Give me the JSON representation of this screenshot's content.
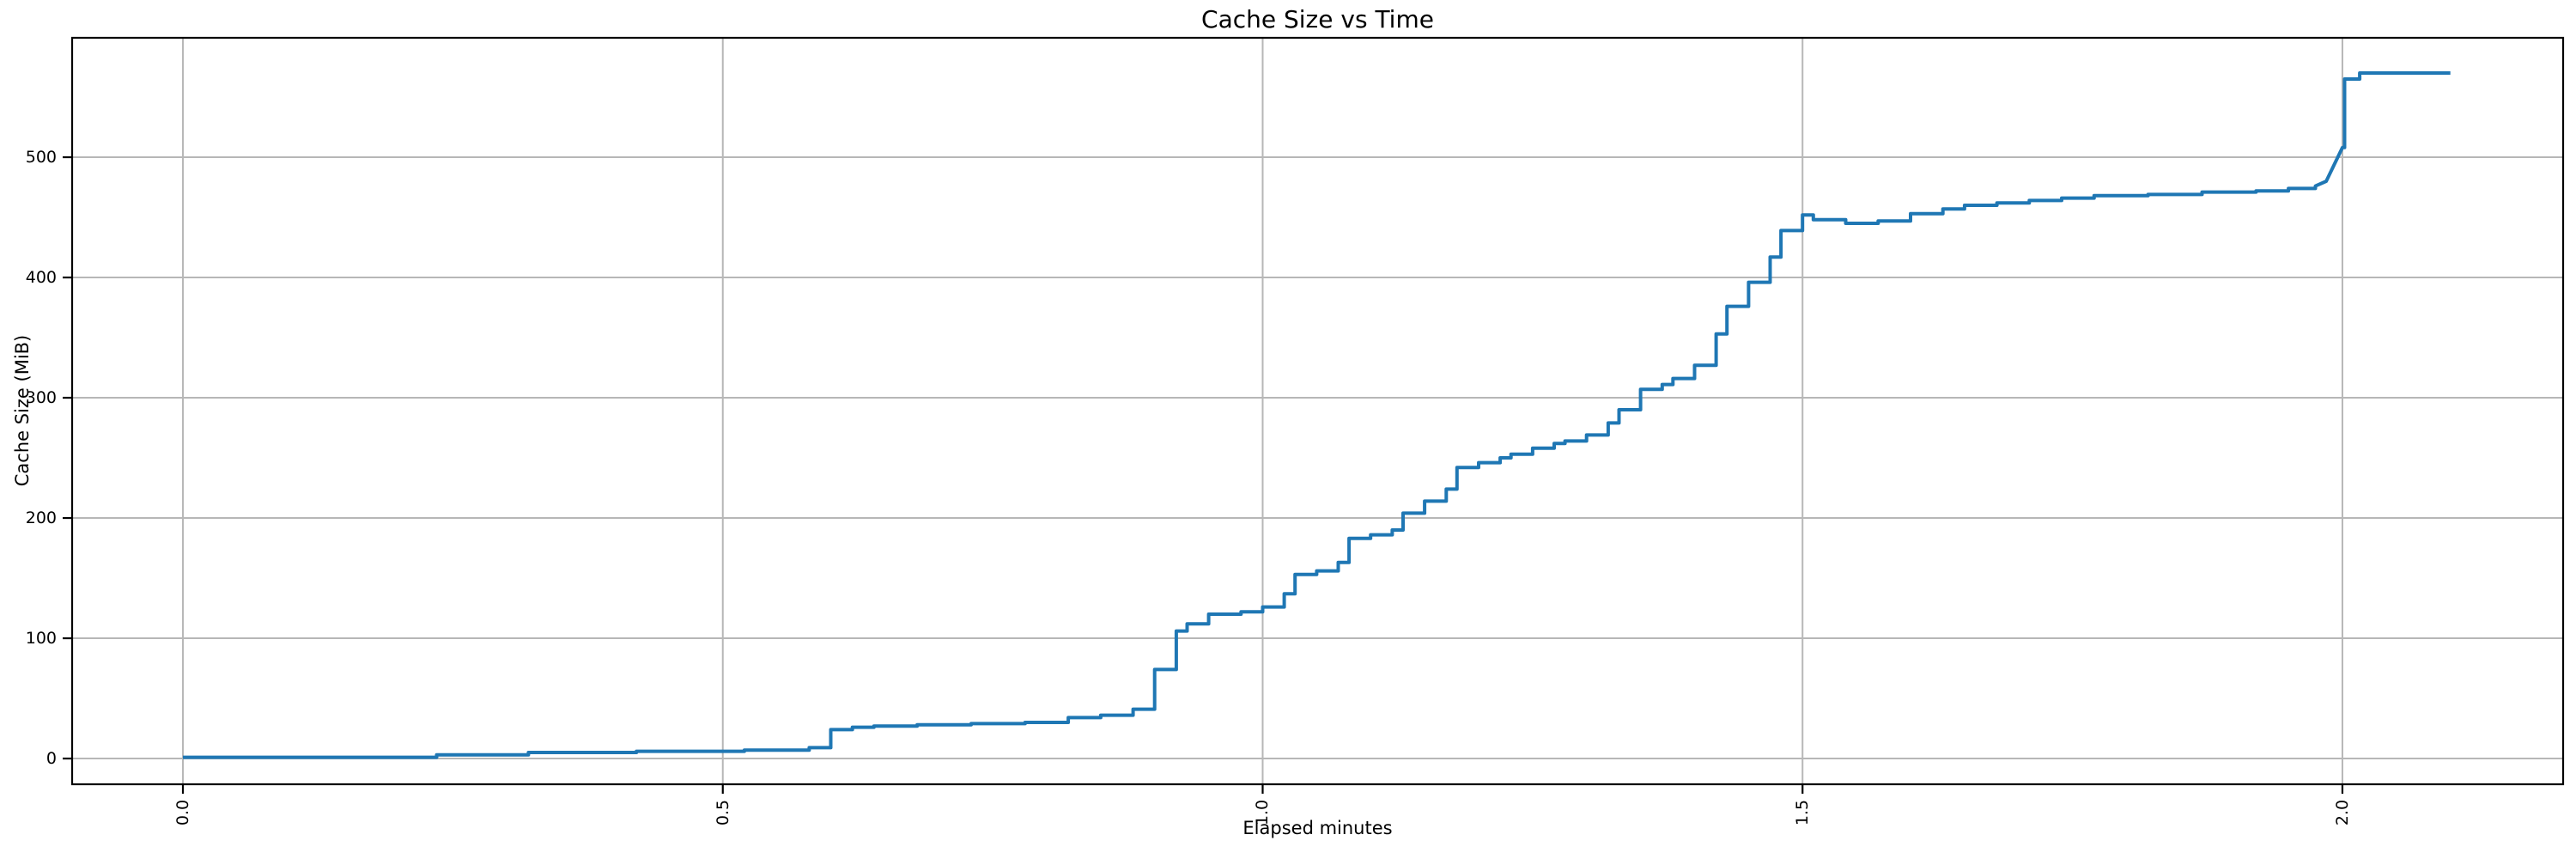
{
  "chart_data": {
    "type": "line",
    "title": "Cache Size vs Time",
    "xlabel": "Elapsed minutes",
    "ylabel": "Cache Size (MiB)",
    "x_ticks": [
      "0.0",
      "0.5",
      "1.0",
      "1.5",
      "2.0"
    ],
    "y_ticks": [
      "0",
      "100",
      "200",
      "300",
      "400",
      "500"
    ],
    "xlim": [
      -0.1026,
      2.2044
    ],
    "ylim": [
      -21.4,
      599.3
    ],
    "grid": true,
    "legend": false,
    "line_color": "#1f77b4",
    "grid_color": "#b7b7b7",
    "spine_color": "#000000",
    "interpolation": "step-post",
    "series": [
      {
        "name": "cache-size",
        "points": [
          [
            0.0,
            1
          ],
          [
            0.235,
            3
          ],
          [
            0.32,
            5
          ],
          [
            0.42,
            6
          ],
          [
            0.52,
            7
          ],
          [
            0.58,
            9
          ],
          [
            0.6,
            24
          ],
          [
            0.62,
            26
          ],
          [
            0.64,
            27
          ],
          [
            0.68,
            28
          ],
          [
            0.73,
            29
          ],
          [
            0.78,
            30
          ],
          [
            0.82,
            34
          ],
          [
            0.85,
            36
          ],
          [
            0.88,
            41
          ],
          [
            0.9,
            74
          ],
          [
            0.92,
            106
          ],
          [
            0.93,
            112
          ],
          [
            0.95,
            120
          ],
          [
            0.98,
            122
          ],
          [
            1.0,
            126
          ],
          [
            1.02,
            137
          ],
          [
            1.03,
            153
          ],
          [
            1.05,
            156
          ],
          [
            1.07,
            163
          ],
          [
            1.08,
            183
          ],
          [
            1.1,
            186
          ],
          [
            1.12,
            190
          ],
          [
            1.13,
            204
          ],
          [
            1.15,
            214
          ],
          [
            1.17,
            224
          ],
          [
            1.18,
            242
          ],
          [
            1.2,
            246
          ],
          [
            1.22,
            250
          ],
          [
            1.23,
            253
          ],
          [
            1.25,
            258
          ],
          [
            1.27,
            262
          ],
          [
            1.28,
            264
          ],
          [
            1.3,
            269
          ],
          [
            1.32,
            279
          ],
          [
            1.33,
            290
          ],
          [
            1.35,
            307
          ],
          [
            1.37,
            311
          ],
          [
            1.38,
            316
          ],
          [
            1.4,
            327
          ],
          [
            1.42,
            353
          ],
          [
            1.43,
            376
          ],
          [
            1.45,
            396
          ],
          [
            1.47,
            417
          ],
          [
            1.48,
            439
          ],
          [
            1.5,
            452
          ],
          [
            1.51,
            448
          ],
          [
            1.54,
            445
          ],
          [
            1.57,
            447
          ],
          [
            1.6,
            453
          ],
          [
            1.63,
            457
          ],
          [
            1.65,
            460
          ],
          [
            1.68,
            462
          ],
          [
            1.71,
            464
          ],
          [
            1.74,
            466
          ],
          [
            1.77,
            468
          ],
          [
            1.82,
            469
          ],
          [
            1.87,
            471
          ],
          [
            1.92,
            472
          ],
          [
            1.95,
            474
          ],
          [
            1.975,
            476
          ],
          [
            1.985,
            480,
            "slope"
          ],
          [
            2.0,
            508,
            "slope"
          ],
          [
            2.002,
            565
          ],
          [
            2.016,
            570
          ],
          [
            2.1,
            570
          ]
        ]
      }
    ]
  }
}
